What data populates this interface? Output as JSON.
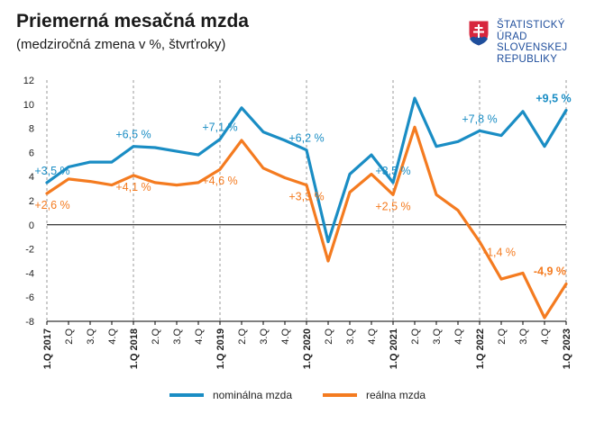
{
  "header": {
    "title": "Priemerná mesačná mzda",
    "subtitle": "(medziročná zmena v %, štvrťroky)"
  },
  "logo": {
    "icon": "slovak-coat-of-arms-icon",
    "lines": [
      "ŠTATISTICKÝ",
      "ÚRAD",
      "SLOVENSKEJ",
      "REPUBLIKY"
    ]
  },
  "colors": {
    "nominal": "#1a8dc4",
    "real": "#f47b20",
    "axis": "#000000",
    "grid": "#999999",
    "logo_blue": "#1f4e9c",
    "logo_red": "#d7263d"
  },
  "legend": {
    "nominal": "nominálna mzda",
    "real": "reálna mzda"
  },
  "chart_data": {
    "type": "line",
    "title": "Priemerná mesačná mzda",
    "subtitle": "(medziročná zmena v %, štvrťroky)",
    "categories": [
      "1.Q 2017",
      "2.Q",
      "3.Q",
      "4.Q",
      "1.Q 2018",
      "2.Q",
      "3.Q",
      "4.Q",
      "1.Q 2019",
      "2.Q",
      "3.Q",
      "4.Q",
      "1.Q 2020",
      "2.Q",
      "3.Q",
      "4.Q",
      "1.Q 2021",
      "2.Q",
      "3.Q",
      "4.Q",
      "1.Q 2022",
      "2.Q",
      "3.Q",
      "4.Q",
      "1.Q 2023"
    ],
    "bold_categories": [
      0,
      4,
      8,
      12,
      16,
      20,
      24
    ],
    "ylim": [
      -8,
      12
    ],
    "yticks": [
      -8,
      -6,
      -4,
      -2,
      0,
      2,
      4,
      6,
      8,
      10,
      12
    ],
    "grid": "vertical dashed at first quarters",
    "legend_position": "bottom",
    "series": [
      {
        "name": "nominálna mzda",
        "color": "#1a8dc4",
        "values": [
          3.5,
          4.8,
          5.2,
          5.2,
          6.5,
          6.4,
          6.1,
          5.8,
          7.1,
          9.7,
          7.7,
          7.0,
          6.2,
          -1.4,
          4.2,
          5.8,
          3.5,
          10.5,
          6.5,
          6.9,
          7.8,
          7.4,
          9.4,
          6.5,
          9.5
        ]
      },
      {
        "name": "reálna mzda",
        "color": "#f47b20",
        "values": [
          2.6,
          3.8,
          3.6,
          3.3,
          4.1,
          3.5,
          3.3,
          3.5,
          4.6,
          7.0,
          4.7,
          3.9,
          3.3,
          -3.0,
          2.7,
          4.2,
          2.5,
          8.1,
          2.5,
          1.2,
          -1.4,
          -4.5,
          -4.0,
          -7.7,
          -4.9
        ]
      }
    ],
    "annotations": [
      {
        "series": 0,
        "index": 0,
        "text": "+3,5 %",
        "pos": "above"
      },
      {
        "series": 0,
        "index": 4,
        "text": "+6,5 %",
        "pos": "above"
      },
      {
        "series": 0,
        "index": 8,
        "text": "+7,1 %",
        "pos": "above"
      },
      {
        "series": 0,
        "index": 12,
        "text": "+6,2 %",
        "pos": "above"
      },
      {
        "series": 0,
        "index": 16,
        "text": "+3,5 %",
        "pos": "above"
      },
      {
        "series": 0,
        "index": 20,
        "text": "+7,8 %",
        "pos": "above"
      },
      {
        "series": 0,
        "index": 24,
        "text": "+9,5 %",
        "pos": "above",
        "bold": true
      },
      {
        "series": 1,
        "index": 0,
        "text": "+2,6 %",
        "pos": "below"
      },
      {
        "series": 1,
        "index": 4,
        "text": "+4,1 %",
        "pos": "below"
      },
      {
        "series": 1,
        "index": 8,
        "text": "+4,6 %",
        "pos": "below"
      },
      {
        "series": 1,
        "index": 12,
        "text": "+3,3 %",
        "pos": "below"
      },
      {
        "series": 1,
        "index": 16,
        "text": "+2,5 %",
        "pos": "below"
      },
      {
        "series": 1,
        "index": 20,
        "text": "-1,4 %",
        "pos": "below-right"
      },
      {
        "series": 1,
        "index": 24,
        "text": "-4,9 %",
        "pos": "above-left",
        "bold": true
      }
    ]
  }
}
